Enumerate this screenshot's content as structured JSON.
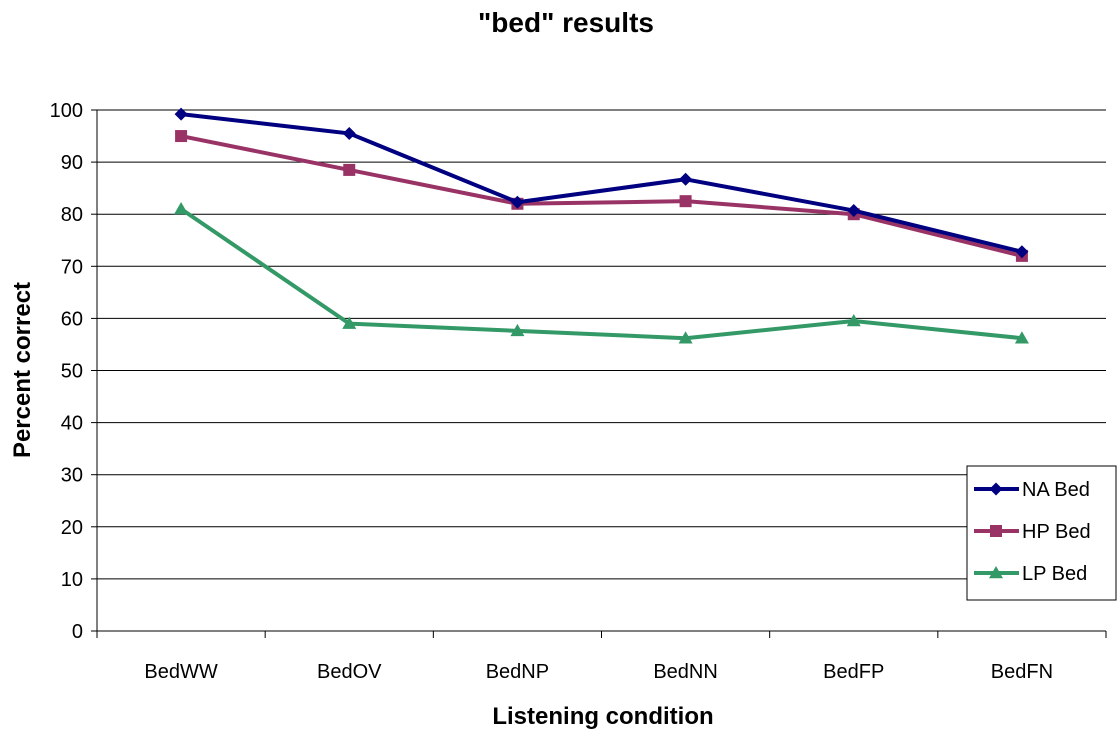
{
  "chart_data": {
    "type": "line",
    "title": "\"bed\" results",
    "xlabel": "Listening condition",
    "ylabel": "Percent correct",
    "categories": [
      "BedWW",
      "BedOV",
      "BedNP",
      "BedNN",
      "BedFP",
      "BedFN"
    ],
    "ylim": [
      0,
      100
    ],
    "yticks": [
      0,
      10,
      20,
      30,
      40,
      50,
      60,
      70,
      80,
      90,
      100
    ],
    "grid": "horizontal",
    "legend_position": "right",
    "series": [
      {
        "name": "NA Bed",
        "color": "#000080",
        "marker": "diamond",
        "values": [
          99.2,
          95.5,
          82.3,
          86.7,
          80.7,
          72.8
        ]
      },
      {
        "name": "HP Bed",
        "color": "#993366",
        "marker": "square",
        "values": [
          95.0,
          88.5,
          82.0,
          82.5,
          80.0,
          72.0
        ]
      },
      {
        "name": "LP Bed",
        "color": "#339966",
        "marker": "triangle",
        "values": [
          81.0,
          59.0,
          57.6,
          56.2,
          59.5,
          56.2
        ]
      }
    ]
  }
}
